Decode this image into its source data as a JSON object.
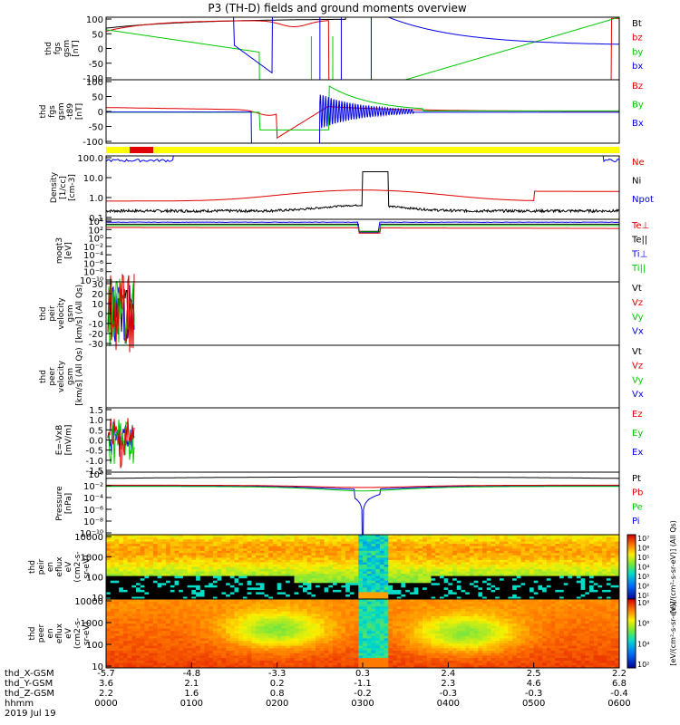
{
  "title": "P3 (TH-D) fields and ground moments overview",
  "colors": {
    "black": "#000000",
    "red": "#e00000",
    "green": "#00c800",
    "blue": "#0000e6",
    "yellow": "#ffff00"
  },
  "chart_data": [
    {
      "type": "line",
      "id": "fgs",
      "ylabel": [
        "thd",
        "fgs",
        "gsm",
        "[nT]"
      ],
      "ylim": [
        -100,
        100
      ],
      "yticks": [
        "100",
        "50",
        "0",
        "-50",
        "-100"
      ],
      "series": [
        {
          "name": "Bt",
          "color": "black"
        },
        {
          "name": "bz",
          "color": "red"
        },
        {
          "name": "by",
          "color": "green"
        },
        {
          "name": "bx",
          "color": "blue"
        }
      ]
    },
    {
      "type": "line",
      "id": "fgs_sub",
      "ylabel": [
        "thd",
        "fgs",
        "gsm",
        "-t89",
        "[nT]"
      ],
      "ylim": [
        -120,
        120
      ],
      "yticks": [
        "100",
        "50",
        "0",
        "-50",
        "-100"
      ],
      "series": [
        {
          "name": "Bz",
          "color": "red"
        },
        {
          "name": "By",
          "color": "green"
        },
        {
          "name": "Bx",
          "color": "blue"
        }
      ]
    },
    {
      "type": "line",
      "id": "density",
      "log": true,
      "ylabel": [
        "Density",
        "[1/cc]",
        "[cm-3]"
      ],
      "ylim": [
        0.05,
        150
      ],
      "yticks": [
        "100.0",
        "10.0",
        "1.0",
        "0.1"
      ],
      "series": [
        {
          "name": "Ne",
          "color": "red"
        },
        {
          "name": "Ni",
          "color": "black"
        },
        {
          "name": "Npot",
          "color": "blue"
        }
      ]
    },
    {
      "type": "line",
      "id": "temp",
      "log": true,
      "ylabel": [
        "moqt3",
        "[eV]"
      ],
      "ylim": [
        1e-10,
        10000.0
      ],
      "yticks": [
        "10⁴",
        "10²",
        "10⁰",
        "10⁻²",
        "10⁻⁴",
        "10⁻⁶",
        "10⁻⁸",
        "10⁻¹⁰"
      ],
      "series": [
        {
          "name": "Te⊥",
          "color": "red"
        },
        {
          "name": "Te||",
          "color": "black"
        },
        {
          "name": "Ti⊥",
          "color": "blue"
        },
        {
          "name": "Ti||",
          "color": "green"
        }
      ]
    },
    {
      "type": "line",
      "id": "peir_vel",
      "ylabel": [
        "thd",
        "peir",
        "velocity",
        "gsm",
        "[km/s] (All Qs)"
      ],
      "ylim": [
        -30,
        30
      ],
      "yticks": [
        "30",
        "20",
        "10",
        "0",
        "-10",
        "-20",
        "-30"
      ],
      "series": [
        {
          "name": "Vt",
          "color": "black"
        },
        {
          "name": "Vz",
          "color": "red"
        },
        {
          "name": "Vy",
          "color": "green"
        },
        {
          "name": "Vx",
          "color": "blue"
        }
      ]
    },
    {
      "type": "line",
      "id": "peer_vel",
      "ylabel": [
        "thd",
        "peer",
        "velocity",
        "gsm",
        "[km/s] (All Qs)"
      ],
      "ylim": [
        -1,
        1
      ],
      "yticks": [],
      "series": [
        {
          "name": "Vt",
          "color": "black"
        },
        {
          "name": "Vz",
          "color": "red"
        },
        {
          "name": "Vy",
          "color": "green"
        },
        {
          "name": "Vx",
          "color": "blue"
        }
      ]
    },
    {
      "type": "line",
      "id": "efield",
      "ylabel": [
        "E=-VxB",
        "[mV/m]"
      ],
      "ylim": [
        -1.5,
        1.5
      ],
      "yticks": [
        "1.5",
        "1.0",
        "0.5",
        "0.0",
        "-0.5",
        "-1.0",
        "-1.5"
      ],
      "series": [
        {
          "name": "Ez",
          "color": "red"
        },
        {
          "name": "Ey",
          "color": "green"
        },
        {
          "name": "Ex",
          "color": "blue"
        }
      ]
    },
    {
      "type": "line",
      "id": "pressure",
      "log": true,
      "ylabel": [
        "Pressure",
        "[nPa]"
      ],
      "ylim": [
        1e-10,
        10.0
      ],
      "yticks": [
        "10⁰",
        "10⁻²",
        "10⁻⁴",
        "10⁻⁶",
        "10⁻⁸",
        "10⁻¹⁰"
      ],
      "series": [
        {
          "name": "Pt",
          "color": "black"
        },
        {
          "name": "Pb",
          "color": "red"
        },
        {
          "name": "Pe",
          "color": "green"
        },
        {
          "name": "Pi",
          "color": "blue"
        }
      ]
    },
    {
      "type": "heatmap",
      "id": "peir_en",
      "ylabel": [
        "thd",
        "peir",
        "en",
        "eflux",
        "eV",
        "(cm2-s-",
        "sr-eV)"
      ],
      "ylim": [
        5,
        25000
      ],
      "yticks": [
        "10000",
        "1000",
        "100",
        "10"
      ],
      "colorbar": {
        "ticks": [
          "10⁷",
          "10⁶",
          "10⁵",
          "10⁴",
          "10³",
          "10²",
          "10¹"
        ],
        "label": "[eV/(cm²-s-sr-eV)] (All Qs)",
        "range": [
          1,
          7
        ]
      }
    },
    {
      "type": "heatmap",
      "id": "peer_en",
      "ylabel": [
        "thd",
        "peer",
        "en",
        "eflux",
        "eV",
        "(cm2-s-",
        "sr-eV)"
      ],
      "ylim": [
        5,
        25000
      ],
      "yticks": [
        "10000",
        "1000",
        "100",
        "10"
      ],
      "colorbar": {
        "ticks": [
          "10⁸",
          "10⁶",
          "10⁴",
          "10²"
        ],
        "label": "[eV/(cm²-s-sr-eV)]",
        "range": [
          2,
          9
        ]
      }
    }
  ],
  "x_axis": {
    "rows": [
      {
        "label": "thd_X-GSM",
        "values": [
          "-5.7",
          "-4.8",
          "-3.3",
          "0.3",
          "2.4",
          "2.5",
          "2.2"
        ]
      },
      {
        "label": "thd_Y-GSM",
        "values": [
          "3.6",
          "2.1",
          "0.2",
          "-1.1",
          "2.3",
          "4.6",
          "6.8"
        ]
      },
      {
        "label": "thd_Z-GSM",
        "values": [
          "2.2",
          "1.6",
          "0.8",
          "-0.2",
          "-0.3",
          "-0.3",
          "-0.4"
        ]
      },
      {
        "label": "hhmm",
        "values": [
          "0000",
          "0100",
          "0200",
          "0300",
          "0400",
          "0500",
          "0600"
        ]
      }
    ],
    "date": "2019 Jul 19",
    "tick_hours": [
      0,
      1,
      2,
      3,
      4,
      5,
      6
    ]
  }
}
